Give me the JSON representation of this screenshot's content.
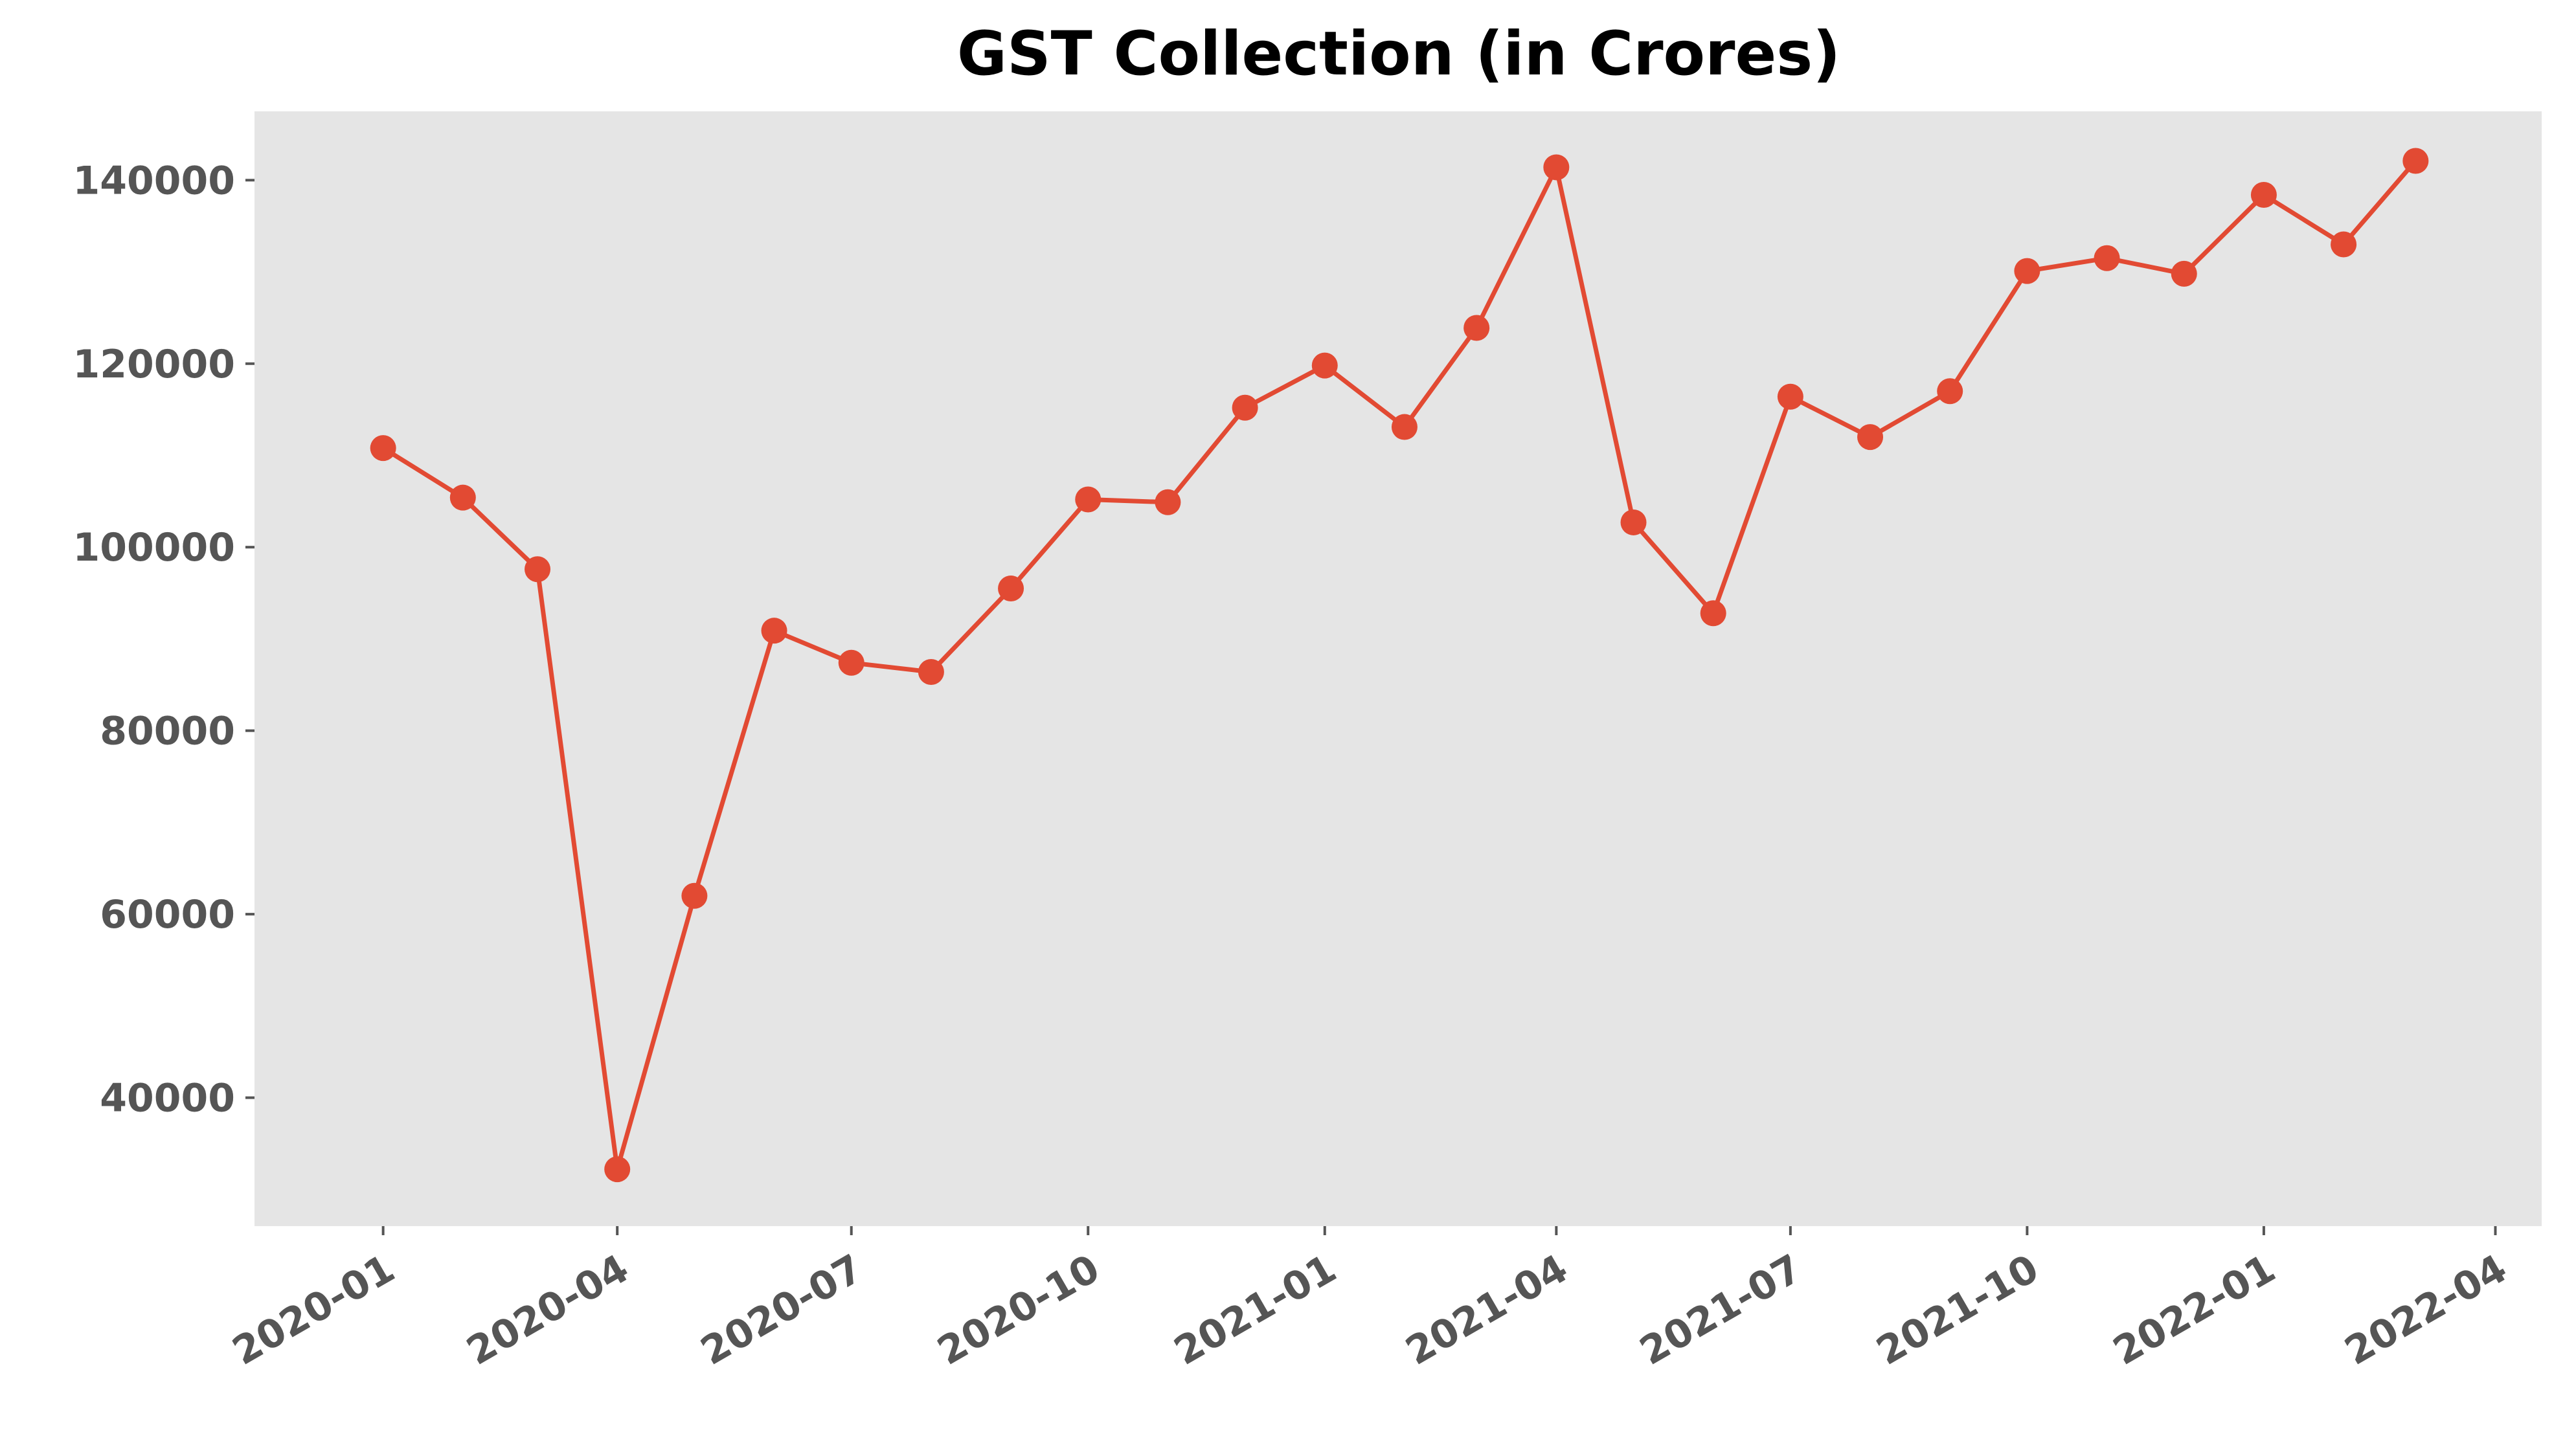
{
  "colors": {
    "plot_background": "#e5e5e5",
    "series": "#e24a33",
    "tick_text": "#555555",
    "title_text": "#000000"
  },
  "chart_data": {
    "type": "line",
    "title": "GST Collection (in Crores)",
    "xlabel": "",
    "ylabel": "",
    "grid": false,
    "x_is_date": true,
    "xlim": [
      "2019-11-12",
      "2022-04-19"
    ],
    "ylim": [
      26000,
      147500
    ],
    "x_ticks": [
      "2020-01",
      "2020-04",
      "2020-07",
      "2020-10",
      "2021-01",
      "2021-04",
      "2021-07",
      "2021-10",
      "2022-01",
      "2022-04"
    ],
    "y_ticks": [
      40000,
      60000,
      80000,
      100000,
      120000,
      140000
    ],
    "series": [
      {
        "marker": "circle",
        "x": [
          "2020-01-01",
          "2020-02-01",
          "2020-03-01",
          "2020-04-01",
          "2020-05-01",
          "2020-06-01",
          "2020-07-01",
          "2020-08-01",
          "2020-09-01",
          "2020-10-01",
          "2020-11-01",
          "2020-12-01",
          "2021-01-01",
          "2021-02-01",
          "2021-03-01",
          "2021-04-01",
          "2021-05-01",
          "2021-06-01",
          "2021-07-01",
          "2021-08-01",
          "2021-09-01",
          "2021-10-01",
          "2021-11-01",
          "2021-12-01",
          "2022-01-01",
          "2022-02-01",
          "2022-03-01"
        ],
        "y": [
          110800,
          105400,
          97600,
          32200,
          62000,
          90900,
          87400,
          86400,
          95500,
          105200,
          104900,
          115200,
          119800,
          113100,
          123900,
          141400,
          102700,
          92800,
          116400,
          112000,
          117000,
          130100,
          131500,
          129800,
          138400,
          133000,
          142100
        ]
      }
    ]
  }
}
